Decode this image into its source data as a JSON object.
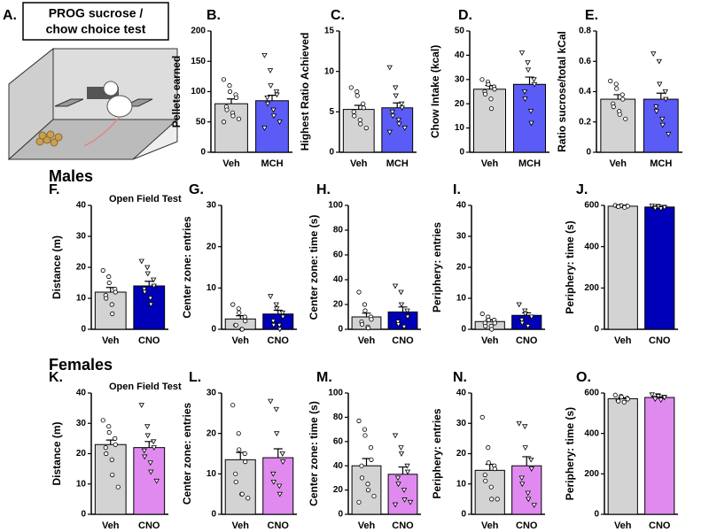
{
  "panel_a": {
    "label": "A.",
    "title_lines": [
      "PROG sucrose /",
      "chow choice test"
    ]
  },
  "sections": [
    "Males",
    "Females"
  ],
  "chart_data": [
    {
      "type": "bar",
      "label": "B.",
      "ylabel": "Pellets earned",
      "categories": [
        "Veh",
        "MCH"
      ],
      "colors": [
        "#d3d3d3",
        "#5b5bf5"
      ],
      "values": [
        80,
        85
      ],
      "errors": [
        8,
        9
      ],
      "points": [
        [
          120,
          110,
          100,
          95,
          90,
          75,
          70,
          65,
          60,
          55,
          50
        ],
        [
          160,
          135,
          110,
          100,
          95,
          90,
          80,
          70,
          60,
          50,
          40
        ]
      ],
      "ylim": [
        0,
        200
      ],
      "yticks": [
        0,
        50,
        100,
        150,
        200
      ]
    },
    {
      "type": "bar",
      "label": "C.",
      "ylabel": "Highest Ratio Achieved",
      "categories": [
        "Veh",
        "MCH"
      ],
      "colors": [
        "#d3d3d3",
        "#5b5bf5"
      ],
      "values": [
        5.3,
        5.5
      ],
      "errors": [
        0.5,
        0.6
      ],
      "points": [
        [
          8,
          7.5,
          7,
          6,
          5.5,
          5,
          4.5,
          4,
          3.5,
          3
        ],
        [
          10.5,
          8,
          7,
          6,
          5.5,
          5,
          4.5,
          4,
          3.5,
          3,
          2.5
        ]
      ],
      "ylim": [
        0,
        15
      ],
      "yticks": [
        0,
        5,
        10,
        15
      ]
    },
    {
      "type": "bar",
      "label": "D.",
      "ylabel": "Chow Intake (kcal)",
      "categories": [
        "Veh",
        "MCH"
      ],
      "colors": [
        "#d3d3d3",
        "#5b5bf5"
      ],
      "values": [
        26,
        28
      ],
      "errors": [
        1.5,
        3
      ],
      "points": [
        [
          30,
          29,
          28,
          27,
          26,
          25,
          24,
          22,
          18
        ],
        [
          41,
          37,
          34,
          30,
          28,
          25,
          22,
          17,
          12
        ]
      ],
      "ylim": [
        0,
        50
      ],
      "yticks": [
        0,
        10,
        20,
        30,
        40,
        50
      ]
    },
    {
      "type": "bar",
      "label": "E.",
      "ylabel": "Ratio sucrose/total kCal",
      "categories": [
        "Veh",
        "MCH"
      ],
      "colors": [
        "#d3d3d3",
        "#5b5bf5"
      ],
      "values": [
        0.35,
        0.35
      ],
      "errors": [
        0.03,
        0.04
      ],
      "points": [
        [
          0.47,
          0.45,
          0.42,
          0.38,
          0.35,
          0.32,
          0.3,
          0.27,
          0.25,
          0.22
        ],
        [
          0.65,
          0.6,
          0.45,
          0.4,
          0.35,
          0.3,
          0.27,
          0.22,
          0.18,
          0.12
        ]
      ],
      "ylim": [
        0,
        0.8
      ],
      "yticks": [
        0,
        0.2,
        0.4,
        0.6,
        0.8
      ]
    },
    {
      "type": "bar",
      "label": "F.",
      "subtitle": "Open Field Test",
      "ylabel": "Distance (m)",
      "categories": [
        "Veh",
        "CNO"
      ],
      "colors": [
        "#d3d3d3",
        "#0000b8"
      ],
      "values": [
        12,
        14
      ],
      "errors": [
        1.5,
        1.5
      ],
      "points": [
        [
          19,
          17,
          15,
          13,
          12,
          11,
          10,
          8,
          5
        ],
        [
          22,
          20,
          18,
          16,
          14,
          13,
          12,
          10,
          8
        ]
      ],
      "ylim": [
        0,
        40
      ],
      "yticks": [
        0,
        10,
        20,
        30,
        40
      ]
    },
    {
      "type": "bar",
      "label": "G.",
      "ylabel": "Center zone: entries",
      "categories": [
        "Veh",
        "CNO"
      ],
      "colors": [
        "#d3d3d3",
        "#0000b8"
      ],
      "values": [
        2.5,
        3.7
      ],
      "errors": [
        0.8,
        0.9
      ],
      "points": [
        [
          6,
          5,
          4,
          3,
          2,
          1,
          1,
          0,
          0
        ],
        [
          8,
          6,
          5,
          4,
          3,
          2,
          1,
          1,
          0
        ]
      ],
      "ylim": [
        0,
        30
      ],
      "yticks": [
        0,
        10,
        20,
        30
      ]
    },
    {
      "type": "bar",
      "label": "H.",
      "ylabel": "Center zone: time (s)",
      "categories": [
        "Veh",
        "CNO"
      ],
      "colors": [
        "#d3d3d3",
        "#0000b8"
      ],
      "values": [
        10,
        14
      ],
      "errors": [
        3,
        4
      ],
      "points": [
        [
          30,
          20,
          15,
          10,
          8,
          6,
          4,
          2,
          1
        ],
        [
          35,
          30,
          20,
          15,
          10,
          6,
          4,
          2
        ]
      ],
      "ylim": [
        0,
        100
      ],
      "yticks": [
        0,
        20,
        40,
        60,
        80,
        100
      ]
    },
    {
      "type": "bar",
      "label": "I.",
      "ylabel": "Periphery: entries",
      "categories": [
        "Veh",
        "CNO"
      ],
      "colors": [
        "#d3d3d3",
        "#0000b8"
      ],
      "values": [
        2.5,
        4.5
      ],
      "errors": [
        0.6,
        0.8
      ],
      "points": [
        [
          5,
          4,
          3,
          3,
          2,
          2,
          1,
          1,
          0
        ],
        [
          8,
          6,
          5,
          4,
          4,
          3,
          2,
          1
        ]
      ],
      "ylim": [
        0,
        40
      ],
      "yticks": [
        0,
        10,
        20,
        30,
        40
      ]
    },
    {
      "type": "bar",
      "label": "J.",
      "ylabel": "Periphery: time (s)",
      "categories": [
        "Veh",
        "CNO"
      ],
      "colors": [
        "#d3d3d3",
        "#0000b8"
      ],
      "values": [
        596,
        592
      ],
      "errors": [
        2,
        3
      ],
      "points": [
        [
          600,
          599,
          598,
          597,
          596,
          595,
          594,
          593,
          590
        ],
        [
          598,
          596,
          594,
          592,
          590,
          588,
          586,
          584
        ]
      ],
      "ylim": [
        0,
        600
      ],
      "yticks": [
        0,
        200,
        400,
        600
      ]
    },
    {
      "type": "bar",
      "label": "K.",
      "subtitle": "Open Field Test",
      "ylabel": "Distance (m)",
      "categories": [
        "Veh",
        "CNO"
      ],
      "colors": [
        "#d3d3d3",
        "#e08af0"
      ],
      "values": [
        23,
        22
      ],
      "errors": [
        1.5,
        2
      ],
      "points": [
        [
          31,
          29,
          27,
          25,
          23,
          22,
          20,
          18,
          13,
          9
        ],
        [
          36,
          29,
          26,
          24,
          22,
          21,
          19,
          17,
          14,
          11
        ]
      ],
      "ylim": [
        0,
        40
      ],
      "yticks": [
        0,
        10,
        20,
        30,
        40
      ]
    },
    {
      "type": "bar",
      "label": "L.",
      "ylabel": "Center zone: entries",
      "categories": [
        "Veh",
        "CNO"
      ],
      "colors": [
        "#d3d3d3",
        "#e08af0"
      ],
      "values": [
        13.5,
        14
      ],
      "errors": [
        1.8,
        2.2
      ],
      "points": [
        [
          27,
          20,
          16,
          15,
          13,
          10,
          8,
          5,
          5,
          4
        ],
        [
          28,
          26,
          20,
          15,
          13,
          10,
          8,
          7,
          5
        ]
      ],
      "ylim": [
        0,
        30
      ],
      "yticks": [
        0,
        10,
        20,
        30
      ]
    },
    {
      "type": "bar",
      "label": "M.",
      "ylabel": "Center zone: time (s)",
      "categories": [
        "Veh",
        "CNO"
      ],
      "colors": [
        "#d3d3d3",
        "#e08af0"
      ],
      "values": [
        40,
        33
      ],
      "errors": [
        6,
        6
      ],
      "points": [
        [
          77,
          70,
          65,
          55,
          45,
          40,
          30,
          25,
          20,
          15,
          10
        ],
        [
          65,
          55,
          50,
          40,
          35,
          30,
          25,
          20,
          12,
          10,
          8
        ]
      ],
      "ylim": [
        0,
        100
      ],
      "yticks": [
        0,
        20,
        40,
        60,
        80,
        100
      ]
    },
    {
      "type": "bar",
      "label": "N.",
      "ylabel": "Periphery: entries",
      "categories": [
        "Veh",
        "CNO"
      ],
      "colors": [
        "#d3d3d3",
        "#e08af0"
      ],
      "values": [
        14.5,
        16
      ],
      "errors": [
        2,
        3
      ],
      "points": [
        [
          32,
          22,
          17,
          16,
          15,
          13,
          11,
          9,
          5,
          5
        ],
        [
          30,
          29,
          22,
          18,
          15,
          12,
          10,
          7,
          5,
          3
        ]
      ],
      "ylim": [
        0,
        40
      ],
      "yticks": [
        0,
        10,
        20,
        30,
        40
      ]
    },
    {
      "type": "bar",
      "label": "O.",
      "ylabel": "Periphery: time (s)",
      "categories": [
        "Veh",
        "CNO"
      ],
      "colors": [
        "#d3d3d3",
        "#e08af0"
      ],
      "values": [
        572,
        578
      ],
      "errors": [
        4,
        3
      ],
      "points": [
        [
          590,
          585,
          580,
          575,
          570,
          565,
          560,
          555
        ],
        [
          592,
          588,
          585,
          580,
          578,
          575,
          570,
          566
        ]
      ],
      "ylim": [
        0,
        600
      ],
      "yticks": [
        0,
        200,
        400,
        600
      ]
    }
  ]
}
